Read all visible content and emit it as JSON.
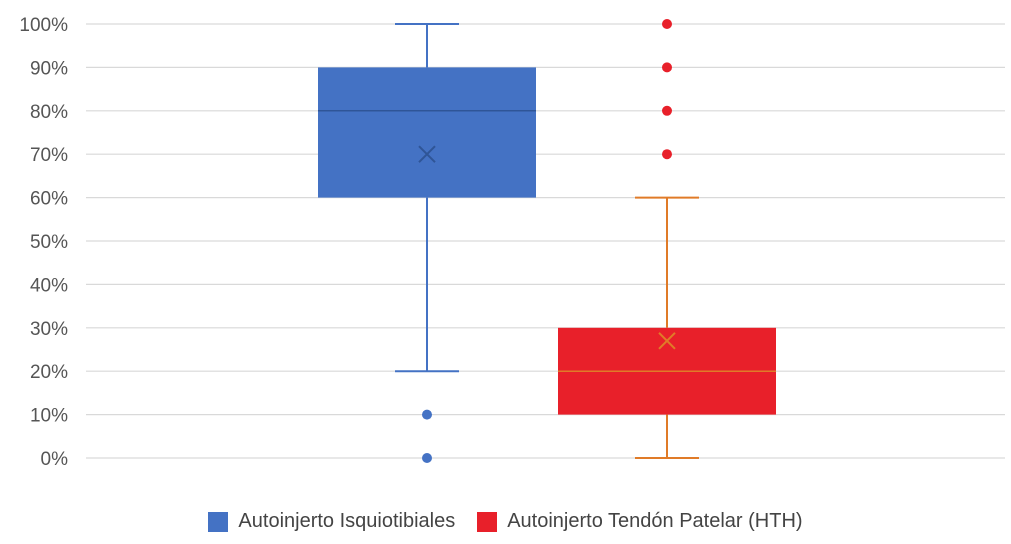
{
  "chart_data": {
    "type": "box",
    "title": "",
    "xlabel": "",
    "ylabel": "",
    "ylim": [
      0,
      100
    ],
    "y_ticks": [
      "0%",
      "10%",
      "20%",
      "30%",
      "40%",
      "50%",
      "60%",
      "70%",
      "80%",
      "90%",
      "100%"
    ],
    "y_tick_values": [
      0,
      10,
      20,
      30,
      40,
      50,
      60,
      70,
      80,
      90,
      100
    ],
    "grid": true,
    "legend_position": "bottom",
    "series": [
      {
        "name": "Autoinjerto Isquiotibiales",
        "color": "#4472C4",
        "whisker_low": 20,
        "q1": 60,
        "median": 80,
        "q3": 90,
        "whisker_high": 100,
        "mean": 70,
        "outliers": [
          10,
          0
        ]
      },
      {
        "name": "Autoinjerto Tendón Patelar (HTH)",
        "color": "#E8202A",
        "whisker_color": "#E07B28",
        "whisker_low": 0,
        "q1": 10,
        "median": 20,
        "q3": 30,
        "whisker_high": 60,
        "mean": 27,
        "outliers": [
          70,
          80,
          90,
          100
        ]
      }
    ]
  }
}
